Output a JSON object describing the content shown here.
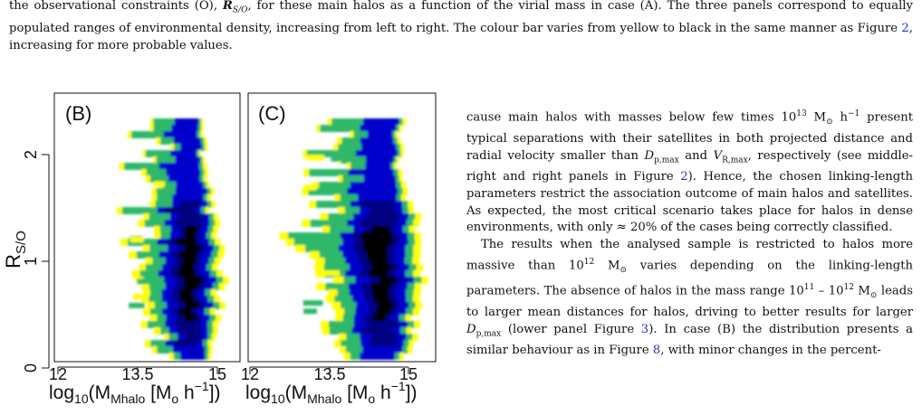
{
  "caption": {
    "line1": "the observational constraints (O), ",
    "line1_math": "R",
    "line1_sub": "S/O",
    "line1_rest": ", for these main halos as a function of the virial mass in case (A). The three panels correspond to equally populated ranges of environmental density, increasing from left to right. The colour bar varies from yellow to black in the same manner as Figure ",
    "line1_ref": "2",
    "line1_end": ", increasing for more probable values."
  },
  "figure": {
    "panels": [
      {
        "label": "(B)"
      },
      {
        "label": "(C)"
      }
    ],
    "ylabel": "R",
    "ylabel_sub": "S/O",
    "yticks": [
      "0",
      "1",
      "2"
    ],
    "xticks": [
      "12",
      "13.5",
      "15"
    ],
    "xlabel": "log",
    "xlabel_sub": "10",
    "xlabel_paren": "(M",
    "xlabel_msub": "Mhalo",
    "xlabel_unit": " [M",
    "xlabel_osub": "o",
    "xlabel_h": " h",
    "xlabel_sup": "−1",
    "xlabel_close": "])",
    "colors": {
      "low": "#ffff00",
      "mid": "#2db86a",
      "high": "#0000cc",
      "peak": "#000000"
    }
  },
  "chart_data": [
    {
      "type": "heatmap",
      "title": "(B)",
      "xlabel": "log10(MMhalo [Mo h^-1])",
      "ylabel": "RS/O",
      "xlim": [
        11.85,
        15.5
      ],
      "ylim": [
        -0.15,
        2.5
      ],
      "x_ticks": [
        12,
        13.5,
        15
      ],
      "y_ticks": [
        0,
        1,
        2
      ],
      "cells": [
        {
          "x": 14.6,
          "y": 0.85,
          "value": 1.0
        },
        {
          "x": 14.55,
          "y": 0.4,
          "value": 0.7
        },
        {
          "x": 14.65,
          "y": 1.3,
          "value": 0.6
        },
        {
          "x": 14.5,
          "y": 1.8,
          "value": 0.35
        },
        {
          "x": 14.8,
          "y": 2.25,
          "value": 0.2
        },
        {
          "x": 13.4,
          "y": 0.5,
          "value": 0.15
        }
      ]
    },
    {
      "type": "heatmap",
      "title": "(C)",
      "xlabel": "log10(MMhalo [Mo h^-1])",
      "ylabel": "",
      "xlim": [
        11.85,
        15.5
      ],
      "ylim": [
        -0.15,
        2.5
      ],
      "x_ticks": [
        12,
        13.5,
        15
      ],
      "y_ticks": [
        0,
        1,
        2
      ],
      "cells": [
        {
          "x": 14.6,
          "y": 0.2,
          "value": 1.0
        },
        {
          "x": 14.5,
          "y": 0.75,
          "value": 0.85
        },
        {
          "x": 14.6,
          "y": 1.4,
          "value": 0.65
        },
        {
          "x": 14.55,
          "y": 2.0,
          "value": 0.45
        },
        {
          "x": 13.6,
          "y": 1.0,
          "value": 0.3
        },
        {
          "x": 13.2,
          "y": 1.5,
          "value": 0.2
        }
      ]
    }
  ],
  "column": {
    "p1_a": "cause main halos with masses below few times 10",
    "p1_exp": "13",
    "p1_b": " M",
    "p1_sun": "⊙",
    "p1_c": " h",
    "p1_cexp": "−1",
    "p1_d": " present typical separations with their satellites in both projected distance and radial velocity smaller than ",
    "p1_Dp": "D",
    "p1_Dp_sub": "p,max",
    "p1_e": " and ",
    "p1_Vr": "V",
    "p1_Vr_sub": "R,max",
    "p1_f": ", respectively (see middle-right and right panels in Figure ",
    "p1_ref": "2",
    "p1_g": "). Hence, the chosen linking-length parameters restrict the association outcome of main halos and satellites. As expected, the most critical scenario takes place for halos in dense environments, with only ≈ 20% of the cases being correctly classified.",
    "p2_a": "The results when the analysed sample is restricted to halos more massive than 10",
    "p2_exp": "12",
    "p2_b": " M",
    "p2_sun": "⊙",
    "p2_c": " varies depending on the linking-length parameters. The absence of halos in the mass range 10",
    "p2_exp2": "11",
    "p2_d": " – 10",
    "p2_exp3": "12",
    "p2_e": " M",
    "p2_sun2": "⊙",
    "p2_f": " leads to larger mean distances for halos, driving to better results for larger ",
    "p2_Dp": "D",
    "p2_Dp_sub": "p,max",
    "p2_g": " (lower panel Figure ",
    "p2_ref": "3",
    "p2_h": "). In case (B) the distribution presents a similar behaviour as in Figure ",
    "p2_ref2": "8",
    "p2_i": ", with minor changes in the percent-"
  }
}
